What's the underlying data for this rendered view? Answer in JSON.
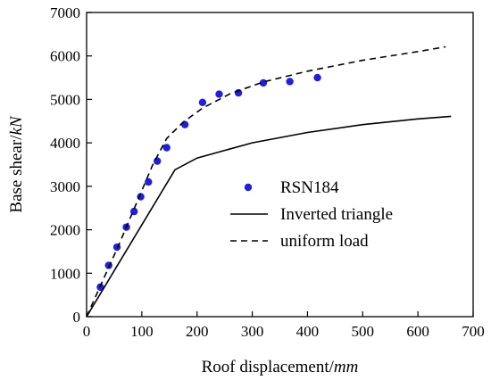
{
  "chart_data": {
    "type": "line",
    "title": "",
    "xlabel": "Roof displacement/",
    "xlabel_unit": "mm",
    "ylabel": "Base shear/",
    "ylabel_unit": "kN",
    "xlim": [
      0,
      700
    ],
    "ylim": [
      0,
      7000
    ],
    "x_ticks": [
      0,
      100,
      200,
      300,
      400,
      500,
      600,
      700
    ],
    "y_ticks": [
      0,
      1000,
      2000,
      3000,
      4000,
      5000,
      6000,
      7000
    ],
    "grid": false,
    "legend_position": "center-right",
    "series": [
      {
        "name": "RSN184",
        "kind": "scatter",
        "color": "#1f1fe0",
        "points": [
          [
            25,
            680
          ],
          [
            40,
            1180
          ],
          [
            55,
            1600
          ],
          [
            72,
            2060
          ],
          [
            86,
            2420
          ],
          [
            98,
            2760
          ],
          [
            112,
            3100
          ],
          [
            128,
            3580
          ],
          [
            145,
            3890
          ],
          [
            178,
            4420
          ],
          [
            210,
            4930
          ],
          [
            240,
            5120
          ],
          [
            275,
            5150
          ],
          [
            320,
            5380
          ],
          [
            368,
            5410
          ],
          [
            418,
            5500
          ]
        ]
      },
      {
        "name": "Inverted triangle",
        "kind": "line",
        "dash": "solid",
        "color": "#000000",
        "points": [
          [
            0,
            0
          ],
          [
            160,
            3380
          ],
          [
            200,
            3650
          ],
          [
            300,
            4000
          ],
          [
            400,
            4240
          ],
          [
            500,
            4420
          ],
          [
            600,
            4550
          ],
          [
            660,
            4610
          ]
        ]
      },
      {
        "name": "uniform load",
        "kind": "line",
        "dash": "dashed",
        "color": "#000000",
        "points": [
          [
            0,
            0
          ],
          [
            60,
            1700
          ],
          [
            120,
            3500
          ],
          [
            145,
            4100
          ],
          [
            175,
            4480
          ],
          [
            210,
            4800
          ],
          [
            260,
            5130
          ],
          [
            320,
            5400
          ],
          [
            400,
            5650
          ],
          [
            500,
            5900
          ],
          [
            600,
            6100
          ],
          [
            650,
            6210
          ]
        ]
      }
    ]
  }
}
